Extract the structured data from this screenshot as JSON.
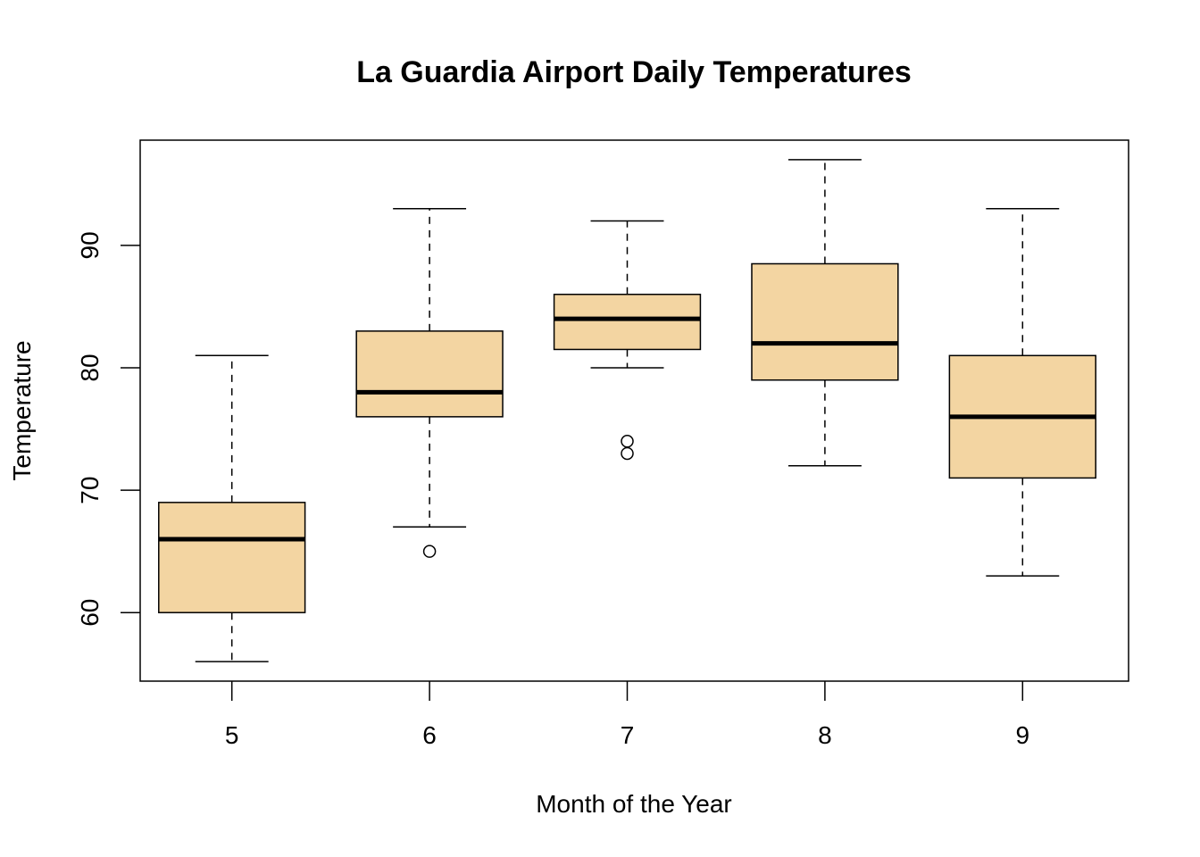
{
  "chart_data": {
    "type": "boxplot",
    "title": "La Guardia Airport Daily Temperatures",
    "xlabel": "Month of the Year",
    "ylabel": "Temperature",
    "categories": [
      "5",
      "6",
      "7",
      "8",
      "9"
    ],
    "ylim": [
      54.4,
      98.6
    ],
    "yticks": [
      "60",
      "70",
      "80",
      "90"
    ],
    "grid": false,
    "legend": "none",
    "box_fill": "#F3D5A2",
    "stroke": "#000000",
    "boxes": [
      {
        "category": "5",
        "whisker_low": 56,
        "q1": 60,
        "median": 66,
        "q3": 69,
        "whisker_high": 81,
        "outliers": []
      },
      {
        "category": "6",
        "whisker_low": 67,
        "q1": 76,
        "median": 78,
        "q3": 83,
        "whisker_high": 93,
        "outliers": [
          65
        ]
      },
      {
        "category": "7",
        "whisker_low": 80,
        "q1": 81.5,
        "median": 84,
        "q3": 86,
        "whisker_high": 92,
        "outliers": [
          73,
          74
        ]
      },
      {
        "category": "8",
        "whisker_low": 72,
        "q1": 79,
        "median": 82,
        "q3": 88.5,
        "whisker_high": 97,
        "outliers": []
      },
      {
        "category": "9",
        "whisker_low": 63,
        "q1": 71,
        "median": 76,
        "q3": 81,
        "whisker_high": 93,
        "outliers": []
      }
    ]
  }
}
